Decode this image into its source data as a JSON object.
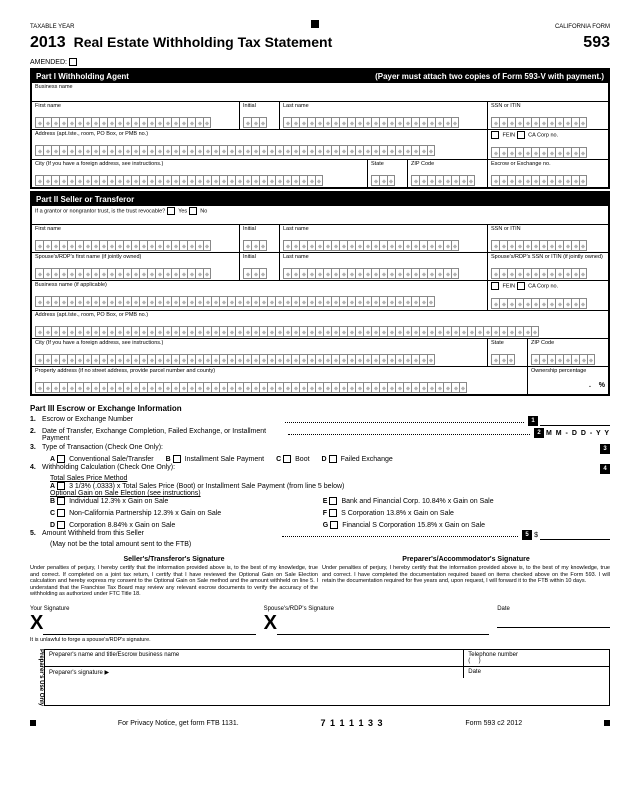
{
  "taxable_year": "TAXABLE YEAR",
  "calif_form": "CALIFORNIA FORM",
  "year": "2013",
  "title": "Real Estate Withholding Tax Statement",
  "form_num": "593",
  "amended_label": "AMENDED:",
  "part1": {
    "title": "Part I Withholding Agent",
    "right": "(Payer must attach two copies of Form 593-V with payment.)",
    "r1a": "Business name",
    "r2a": "First name",
    "r2b": "Initial",
    "r2c": "Last name",
    "r2d": "SSN or ITIN",
    "r3a": "Address (apt./ste., room, PO Box, or PMB no.)",
    "r3b": "FEIN",
    "r3b2": "CA Corp no.",
    "r4a": "City (If you have a foreign address, see instructions.)",
    "r4b": "State",
    "r4c": "ZIP Code",
    "r4d": "Escrow or Exchange no."
  },
  "part2": {
    "title": "Part II Seller or Transferor",
    "r1": "If a grantor or nongrantor trust, is the trust revocable?",
    "yes": "Yes",
    "no": "No",
    "r2a": "First name",
    "r2b": "Initial",
    "r2c": "Last name",
    "r2d": "SSN or ITIN",
    "r3a": "Spouse's/RDP's first name (if jointly owned)",
    "r3b": "Initial",
    "r3c": "Last name",
    "r3d": "Spouse's/RDP's SSN or ITIN (if jointly owned)",
    "r4a": "Business name (if applicable)",
    "r4b": "FEIN",
    "r4c": "CA Corp no.",
    "r5a": "Address (apt./ste., room, PO Box, or PMB no.)",
    "r6a": "City (If you have a foreign address, see instructions.)",
    "r6b": "State",
    "r6c": "ZIP Code",
    "r7a": "Property address (if no street address, provide parcel number and county)",
    "r7b": "Ownership percentage",
    "r7pct": "%"
  },
  "part3": {
    "title": "Part III Escrow or Exchange Information",
    "l1": "Escrow or Exchange Number",
    "l2": "Date of Transfer, Exchange Completion, Failed Exchange, or Installment Payment",
    "l2_fmt": "M M - D D - Y Y",
    "l3": "Type of Transaction (Check One Only):",
    "l3a": "Conventional Sale/Transfer",
    "l3b": "Installment Sale Payment",
    "l3c": "Boot",
    "l3d": "Failed Exchange",
    "l4": "Withholding Calculation (Check One Only):",
    "l4_sub": "Total Sales Price Method",
    "l4a": "3 1/3% (.0333) x Total Sales Price (Boot) or Installment Sale Payment (from line 5 below)",
    "l4_sub2": "Optional Gain on Sale Election (see instructions)",
    "l4b": "Individual 12.3% x Gain on Sale",
    "l4c": "Non-California Partnership 12.3% x Gain on Sale",
    "l4d": "Corporation 8.84% x Gain on Sale",
    "l4e": "Bank and Financial Corp. 10.84% x Gain on Sale",
    "l4f": "S Corporation 13.8% x Gain on Sale",
    "l4g": "Financial S Corporation 15.8% x Gain on Sale",
    "l5": "Amount Withheld from this Seller",
    "l5_sub": "(May not be the total amount sent to the FTB)"
  },
  "perjury": {
    "left_h": "Seller's/Transferor's Signature",
    "right_h": "Preparer's/Accommodator's Signature",
    "left": "Under penalties of perjury, I hereby certify that the information provided above is, to the best of my knowledge, true and correct. If completed on a joint tax return, I certify that I have reviewed the Optional Gain on Sale Election calculation and hereby express my consent to the Optional Gain on Sale method and the amount withheld on line 5. I understand that the Franchise Tax Board may review any relevant escrow documents to verify the accuracy of the withholding as authorized under FTC Title 18.",
    "right": "Under penalties of perjury, I hereby certify that the information provided above is, to the best of my knowledge, true and correct. I have completed the documentation required based on items checked above on the Form 593. I will retain the documentation required for five years and, upon request, I will forward it to the FTB within 10 days."
  },
  "sign": {
    "your": "Your Signature",
    "spouse": "Spouse's/RDP's Signature",
    "date": "Date",
    "x": "X",
    "rep": "It is unlawful to forge a spouse's/RDP's signature."
  },
  "preparer": {
    "label": "Preparer's Use Only",
    "name": "Preparer's name and title/Escrow business name",
    "phone": "Telephone number",
    "sign": "Preparer's signature",
    "date": "Date"
  },
  "footer": {
    "left": "For Privacy Notice, get form FTB 1131.",
    "code": "7 1 1 1 1 3 3",
    "right": "Form 593 c2 2012"
  }
}
